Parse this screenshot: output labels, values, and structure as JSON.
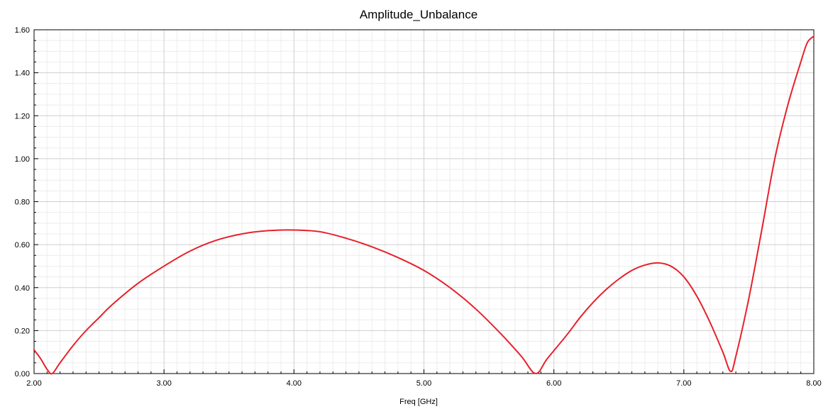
{
  "chart_data": {
    "type": "line",
    "title": "Amplitude_Unbalance",
    "xlabel": "Freq [GHz]",
    "ylabel": "",
    "xlim": [
      2.0,
      8.0
    ],
    "ylim": [
      0.0,
      1.6
    ],
    "x_ticks": [
      "2.00",
      "3.00",
      "4.00",
      "5.00",
      "6.00",
      "7.00",
      "8.00"
    ],
    "y_ticks": [
      "0.00",
      "0.20",
      "0.40",
      "0.60",
      "0.80",
      "1.00",
      "1.20",
      "1.40",
      "1.60"
    ],
    "grid": true,
    "legend": "none",
    "series": [
      {
        "color": "#e8202a",
        "x": [
          2.0,
          2.05,
          2.1,
          2.14,
          2.2,
          2.3,
          2.4,
          2.5,
          2.6,
          2.8,
          3.0,
          3.2,
          3.4,
          3.6,
          3.8,
          4.0,
          4.2,
          4.4,
          4.6,
          4.8,
          5.0,
          5.2,
          5.4,
          5.6,
          5.75,
          5.86,
          5.95,
          6.1,
          6.2,
          6.3,
          6.4,
          6.5,
          6.6,
          6.7,
          6.8,
          6.9,
          7.0,
          7.1,
          7.2,
          7.3,
          7.36,
          7.4,
          7.5,
          7.6,
          7.7,
          7.8,
          7.9,
          7.95,
          8.0
        ],
        "y": [
          0.11,
          0.07,
          0.02,
          0.0,
          0.05,
          0.13,
          0.2,
          0.26,
          0.32,
          0.42,
          0.5,
          0.57,
          0.62,
          0.65,
          0.665,
          0.668,
          0.66,
          0.63,
          0.59,
          0.54,
          0.48,
          0.4,
          0.3,
          0.18,
          0.08,
          0.0,
          0.07,
          0.18,
          0.26,
          0.33,
          0.39,
          0.44,
          0.48,
          0.505,
          0.515,
          0.5,
          0.45,
          0.36,
          0.24,
          0.1,
          0.01,
          0.08,
          0.35,
          0.67,
          1.0,
          1.25,
          1.45,
          1.54,
          1.57
        ]
      }
    ]
  }
}
